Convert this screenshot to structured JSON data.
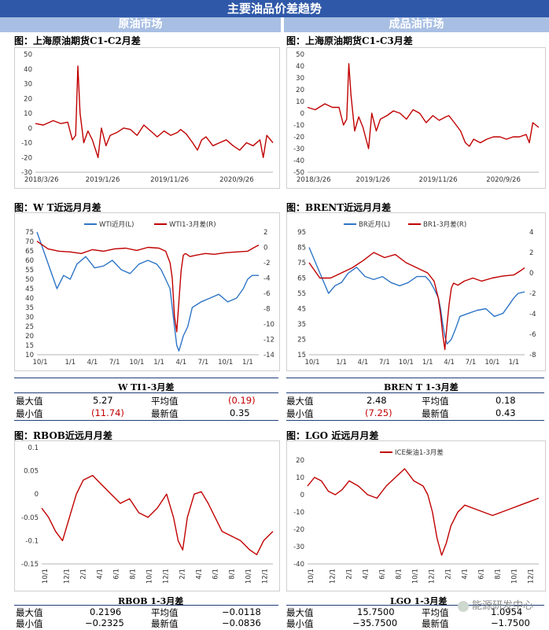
{
  "header": {
    "title": "主要油品价差趋势",
    "left_section": "原油市场",
    "right_section": "成品油市场"
  },
  "colors": {
    "banner": "#2f58a8",
    "subheader": "#a8bfe3",
    "red": "#c00000",
    "blue": "#2e75c6"
  },
  "chart_data": [
    {
      "id": "sh_c1c2",
      "type": "line",
      "title": "图：上海原油期货C1-C2月差",
      "yticks": [
        50,
        40,
        30,
        20,
        10,
        0,
        -10,
        -20,
        -30
      ],
      "ylim": [
        -30,
        50
      ],
      "xticks": [
        "2018/3/26",
        "2019/1/26",
        "2019/11/26",
        "2020/9/26"
      ],
      "xlim": [
        "2018-03-26",
        "2021-03-10"
      ],
      "series": [
        {
          "color": "#c00000",
          "x": [
            "2018-03-26",
            "2018-05-01",
            "2018-06-15",
            "2018-07-20",
            "2018-08-20",
            "2018-09-10",
            "2018-09-25",
            "2018-10-05",
            "2018-10-15",
            "2018-11-01",
            "2018-11-20",
            "2018-12-10",
            "2019-01-05",
            "2019-01-20",
            "2019-02-10",
            "2019-03-01",
            "2019-04-01",
            "2019-05-01",
            "2019-06-01",
            "2019-07-01",
            "2019-08-01",
            "2019-09-01",
            "2019-10-01",
            "2019-11-01",
            "2019-12-01",
            "2020-01-01",
            "2020-01-15",
            "2020-02-10",
            "2020-03-10",
            "2020-04-01",
            "2020-04-20",
            "2020-05-10",
            "2020-06-10",
            "2020-07-10",
            "2020-08-10",
            "2020-09-10",
            "2020-10-10",
            "2020-11-10",
            "2020-12-10",
            "2021-01-10",
            "2021-01-25",
            "2021-02-10",
            "2021-03-10"
          ],
          "y": [
            3,
            2,
            5,
            3,
            4,
            -8,
            -5,
            42,
            10,
            -10,
            -2,
            -8,
            -20,
            0,
            -12,
            -5,
            -3,
            0,
            -1,
            -5,
            2,
            -2,
            -6,
            -2,
            -5,
            -3,
            -1,
            -4,
            -10,
            -15,
            -8,
            -6,
            -12,
            -10,
            -8,
            -12,
            -15,
            -10,
            -12,
            -8,
            -20,
            -5,
            -10
          ]
        }
      ]
    },
    {
      "id": "sh_c1c3",
      "type": "line",
      "title": "图：上海原油期货C1-C3月差",
      "yticks": [
        50,
        40,
        30,
        20,
        10,
        0,
        -10,
        -20,
        -30,
        -40,
        -50
      ],
      "ylim": [
        -50,
        50
      ],
      "xticks": [
        "2018/3/26",
        "2019/1/26",
        "2019/11/26",
        "2020/9/26"
      ],
      "xlim": [
        "2018-03-26",
        "2021-03-10"
      ],
      "series": [
        {
          "color": "#c00000",
          "x": [
            "2018-03-26",
            "2018-05-01",
            "2018-06-15",
            "2018-07-20",
            "2018-08-20",
            "2018-09-10",
            "2018-09-25",
            "2018-10-05",
            "2018-10-15",
            "2018-11-01",
            "2018-11-20",
            "2018-12-10",
            "2019-01-05",
            "2019-01-20",
            "2019-02-10",
            "2019-03-01",
            "2019-04-01",
            "2019-05-01",
            "2019-06-01",
            "2019-07-01",
            "2019-08-01",
            "2019-09-01",
            "2019-10-01",
            "2019-11-01",
            "2019-12-01",
            "2020-01-01",
            "2020-01-15",
            "2020-02-10",
            "2020-03-10",
            "2020-04-01",
            "2020-04-20",
            "2020-05-10",
            "2020-06-10",
            "2020-07-10",
            "2020-08-10",
            "2020-09-10",
            "2020-10-10",
            "2020-11-10",
            "2020-12-10",
            "2021-01-10",
            "2021-01-25",
            "2021-02-10",
            "2021-03-10"
          ],
          "y": [
            5,
            3,
            8,
            5,
            5,
            -10,
            -5,
            42,
            15,
            -15,
            -3,
            -12,
            -30,
            0,
            -15,
            -5,
            -2,
            2,
            0,
            -5,
            3,
            0,
            -8,
            -2,
            -6,
            -3,
            -2,
            -8,
            -15,
            -25,
            -28,
            -22,
            -25,
            -22,
            -20,
            -20,
            -22,
            -20,
            -20,
            -18,
            -25,
            -8,
            -12
          ]
        }
      ]
    },
    {
      "id": "wti",
      "type": "line",
      "title": "图：W T近远月月差",
      "legend": [
        "WTI近月(L)",
        "WTI1-3月差(R)"
      ],
      "yticks_left": [
        75,
        70,
        65,
        60,
        55,
        50,
        45,
        40,
        35,
        30,
        25,
        20,
        15,
        10
      ],
      "ylim_left": [
        10,
        75
      ],
      "yticks_right": [
        2,
        0,
        -2,
        -4,
        -6,
        -8,
        -10,
        -12,
        -14
      ],
      "ylim_right": [
        -14,
        2
      ],
      "xticks": [
        "10/1",
        "1/1",
        "4/1",
        "7/1",
        "10/1",
        "1/1",
        "4/1",
        "7/1",
        "10/1",
        "1/1"
      ],
      "series": [
        {
          "name": "WTI近月(L)",
          "axis": "left",
          "color": "#2e75c6",
          "x": [
            0,
            0.03,
            0.06,
            0.09,
            0.12,
            0.15,
            0.18,
            0.22,
            0.26,
            0.3,
            0.34,
            0.38,
            0.42,
            0.46,
            0.5,
            0.54,
            0.56,
            0.58,
            0.6,
            0.61,
            0.62,
            0.63,
            0.64,
            0.66,
            0.68,
            0.7,
            0.74,
            0.78,
            0.82,
            0.86,
            0.9,
            0.93,
            0.95,
            0.97,
            1.0
          ],
          "y": [
            75,
            65,
            55,
            45,
            52,
            50,
            58,
            62,
            56,
            57,
            60,
            55,
            53,
            58,
            60,
            58,
            55,
            50,
            45,
            35,
            25,
            15,
            12,
            20,
            25,
            35,
            38,
            40,
            42,
            38,
            40,
            45,
            50,
            52,
            52
          ]
        },
        {
          "name": "WTI1-3月差(R)",
          "axis": "right",
          "color": "#c00000",
          "x": [
            0,
            0.05,
            0.1,
            0.15,
            0.2,
            0.25,
            0.3,
            0.35,
            0.4,
            0.45,
            0.5,
            0.55,
            0.58,
            0.6,
            0.61,
            0.62,
            0.63,
            0.64,
            0.65,
            0.66,
            0.67,
            0.69,
            0.72,
            0.76,
            0.8,
            0.85,
            0.9,
            0.95,
            0.98,
            1.0
          ],
          "y": [
            0.8,
            -0.2,
            -0.5,
            -0.6,
            -0.8,
            -0.3,
            -0.5,
            -0.2,
            -0.1,
            -0.4,
            0,
            -0.1,
            -0.5,
            -2,
            -4,
            -9,
            -11,
            -7,
            -3,
            -1,
            -0.8,
            -1.2,
            -1,
            -0.8,
            -0.9,
            -0.7,
            -0.6,
            -0.5,
            0,
            0.3
          ]
        }
      ]
    },
    {
      "id": "brent",
      "type": "line",
      "title": "图：BRENT近远月月差",
      "legend": [
        "BR近月(L)",
        "BR1-3月差(R)"
      ],
      "yticks_left": [
        95,
        85,
        75,
        65,
        55,
        45,
        35,
        25,
        15
      ],
      "ylim_left": [
        15,
        95
      ],
      "yticks_right": [
        4,
        2,
        0,
        -2,
        -4,
        -6,
        -8
      ],
      "ylim_right": [
        -8,
        4
      ],
      "xticks": [
        "10/1",
        "1/1",
        "4/1",
        "7/1",
        "10/1",
        "1/1",
        "4/1",
        "7/1",
        "10/1",
        "1/1"
      ],
      "series": [
        {
          "name": "BR近月(L)",
          "axis": "left",
          "color": "#2e75c6",
          "x": [
            0,
            0.03,
            0.06,
            0.09,
            0.12,
            0.15,
            0.18,
            0.22,
            0.26,
            0.3,
            0.34,
            0.38,
            0.42,
            0.46,
            0.5,
            0.54,
            0.56,
            0.58,
            0.6,
            0.61,
            0.62,
            0.63,
            0.64,
            0.66,
            0.68,
            0.7,
            0.74,
            0.78,
            0.82,
            0.86,
            0.9,
            0.93,
            0.95,
            0.97,
            1.0
          ],
          "y": [
            85,
            75,
            65,
            55,
            60,
            62,
            68,
            72,
            66,
            64,
            66,
            62,
            60,
            62,
            66,
            66,
            63,
            58,
            52,
            45,
            35,
            27,
            22,
            25,
            32,
            40,
            42,
            44,
            45,
            40,
            42,
            48,
            52,
            55,
            56
          ]
        },
        {
          "name": "BR1-3月差(R)",
          "axis": "right",
          "color": "#c00000",
          "x": [
            0,
            0.05,
            0.1,
            0.15,
            0.2,
            0.25,
            0.3,
            0.35,
            0.4,
            0.45,
            0.5,
            0.55,
            0.58,
            0.6,
            0.61,
            0.62,
            0.63,
            0.64,
            0.65,
            0.66,
            0.67,
            0.69,
            0.72,
            0.76,
            0.8,
            0.85,
            0.9,
            0.95,
            0.98,
            1.0
          ],
          "y": [
            1,
            -0.5,
            -0.5,
            0,
            0.5,
            1.2,
            2,
            1.5,
            1.8,
            1,
            0.5,
            0,
            -0.8,
            -2.5,
            -4,
            -6,
            -7.5,
            -5,
            -3,
            -1.5,
            -1,
            -1.2,
            -0.8,
            -0.5,
            -0.8,
            -0.5,
            -0.3,
            -0.2,
            0.2,
            0.5
          ]
        }
      ]
    },
    {
      "id": "rbob",
      "type": "line",
      "title": "图：RBOB近远月月差",
      "yticks": [
        0.1,
        0.05,
        0,
        -0.05,
        -0.1,
        -0.15
      ],
      "ylim": [
        -0.15,
        0.1
      ],
      "xticks": [
        "10/1",
        "12/1",
        "2/1",
        "4/1",
        "6/1",
        "8/1",
        "10/1",
        "12/1",
        "2/1",
        "4/1",
        "6/1",
        "8/1",
        "10/1",
        "12/1"
      ],
      "series": [
        {
          "color": "#c00000",
          "x": [
            0,
            0.03,
            0.06,
            0.09,
            0.12,
            0.15,
            0.18,
            0.22,
            0.26,
            0.3,
            0.34,
            0.38,
            0.42,
            0.46,
            0.5,
            0.54,
            0.57,
            0.59,
            0.61,
            0.63,
            0.66,
            0.69,
            0.72,
            0.75,
            0.78,
            0.82,
            0.86,
            0.9,
            0.93,
            0.96,
            1.0
          ],
          "y": [
            -0.03,
            -0.05,
            -0.08,
            -0.1,
            -0.05,
            0,
            0.03,
            0.04,
            0.02,
            0,
            -0.02,
            -0.01,
            -0.04,
            -0.05,
            -0.03,
            0,
            -0.05,
            -0.1,
            -0.12,
            -0.05,
            0,
            0.005,
            -0.02,
            -0.05,
            -0.08,
            -0.09,
            -0.1,
            -0.12,
            -0.13,
            -0.1,
            -0.08
          ]
        }
      ]
    },
    {
      "id": "lgo",
      "type": "line",
      "title": "图：LGO 近远月月差",
      "legend": [
        "ICE柴油1-3月差"
      ],
      "yticks": [
        20,
        10,
        0,
        -10,
        -20,
        -30,
        -40
      ],
      "ylim": [
        -40,
        20
      ],
      "xticks": [
        "10/1",
        "12/1",
        "2/1",
        "4/1",
        "6/1",
        "8/1",
        "10/1",
        "12/1",
        "2/1",
        "4/1",
        "6/1",
        "8/1",
        "10/1",
        "12/1"
      ],
      "series": [
        {
          "name": "ICE柴油1-3月差",
          "color": "#c00000",
          "x": [
            0,
            0.03,
            0.06,
            0.09,
            0.12,
            0.15,
            0.18,
            0.22,
            0.26,
            0.3,
            0.34,
            0.38,
            0.42,
            0.46,
            0.5,
            0.52,
            0.54,
            0.56,
            0.58,
            0.6,
            0.62,
            0.65,
            0.68,
            0.72,
            0.76,
            0.8,
            0.84,
            0.88,
            0.92,
            0.96,
            1.0
          ],
          "y": [
            5,
            10,
            8,
            2,
            0,
            3,
            8,
            5,
            0,
            -2,
            5,
            10,
            15,
            8,
            5,
            0,
            -10,
            -25,
            -35,
            -28,
            -18,
            -10,
            -6,
            -8,
            -10,
            -12,
            -10,
            -8,
            -6,
            -4,
            -2
          ]
        }
      ]
    }
  ],
  "tables": {
    "wti": {
      "title": "W TI1-3月差",
      "max_label": "最大值",
      "max": "5.27",
      "avg_label": "平均值",
      "avg": "(0.19)",
      "min_label": "最小值",
      "min": "(11.74)",
      "latest_label": "最新值",
      "latest": "0.35"
    },
    "brent": {
      "title": "BREN T 1-3月差",
      "max_label": "最大值",
      "max": "2.48",
      "avg_label": "平均值",
      "avg": "0.18",
      "min_label": "最小值",
      "min": "(7.25)",
      "latest_label": "最新值",
      "latest": "0.43"
    },
    "rbob": {
      "title": "RBOB 1-3月差",
      "max_label": "最大值",
      "max": "0.2196",
      "avg_label": "平均值",
      "avg": "−0.0118",
      "min_label": "最小值",
      "min": "−0.2325",
      "latest_label": "最新值",
      "latest": "−0.0836"
    },
    "lgo": {
      "title": "LGO 1-3月差",
      "max_label": "最大值",
      "max": "15.7500",
      "avg_label": "平均值",
      "avg": "1.0954",
      "min_label": "最小值",
      "min": "−35.7500",
      "latest_label": "最新值",
      "latest": "−1.7500"
    }
  },
  "watermark": "能源研发中心"
}
